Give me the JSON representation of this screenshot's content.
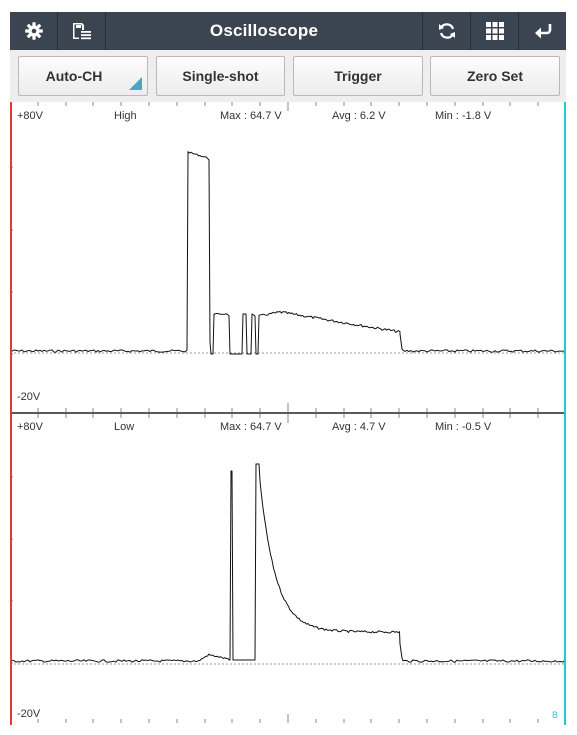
{
  "header": {
    "title": "Oscilloscope",
    "left_icons": [
      "gear-icon",
      "save-list-icon"
    ],
    "right_icons": [
      "refresh-icon",
      "grid-icon",
      "return-icon"
    ]
  },
  "buttons": {
    "auto_ch": "Auto-CH",
    "single_shot": "Single-shot",
    "trigger": "Trigger",
    "zero_set": "Zero Set"
  },
  "channels": [
    {
      "top_label": "+80V",
      "bottom_label": "-20V",
      "name": "High",
      "max": "Max : 64.7 V",
      "avg": "Avg : 6.2 V",
      "min": "Min : -1.8 V"
    },
    {
      "top_label": "+80V",
      "bottom_label": "-20V",
      "name": "Low",
      "max": "Max : 64.7 V",
      "avg": "Avg : 4.7 V",
      "min": "Min : -0.5 V"
    }
  ],
  "cursor_label": "B",
  "colors": {
    "titlebar": "#3b4552",
    "accent": "#4aa6c9",
    "left_cursor": "#e53935",
    "right_cursor": "#26c6da",
    "trace": "#111111"
  }
}
